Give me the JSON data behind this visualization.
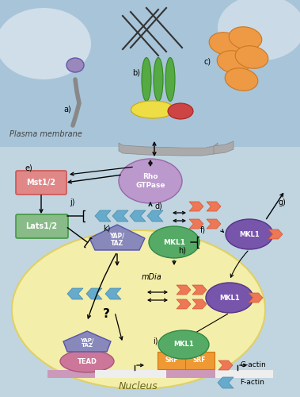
{
  "figsize": [
    3.79,
    5.0
  ],
  "dpi": 100,
  "bg_top_color": "#a8c8dd",
  "bg_bottom_color": "#b8cfd8",
  "nucleus_fc": "#f8f0a8",
  "nucleus_ec": "#e0d060",
  "plasma_membrane_label": "Plasma membrane",
  "nucleus_label": "Nucleus",
  "legend_g": "G-actin",
  "legend_f": "F-actin",
  "g_actin_color": "#ee7755",
  "g_actin_ec": "#cc5533",
  "f_actin_color": "#66aacc",
  "f_actin_ec": "#4488aa",
  "rho_fc": "#bb99cc",
  "rho_ec": "#9966aa",
  "mst_fc": "#e08888",
  "mst_ec": "#cc5555",
  "lats_fc": "#88bb88",
  "lats_ec": "#449944",
  "yap_taz_fc": "#8888bb",
  "yap_taz_ec": "#5555aa",
  "mkl1_green_fc": "#55aa66",
  "mkl1_green_ec": "#338844",
  "mkl1_purple_fc": "#7755aa",
  "mkl1_purple_ec": "#553388",
  "tead_fc": "#cc7799",
  "tead_ec": "#aa5577",
  "srf_fc": "#ee9933",
  "srf_ec": "#cc7711",
  "promoter_fc": "#cc99bb",
  "promoter_white": "#eeeeee"
}
